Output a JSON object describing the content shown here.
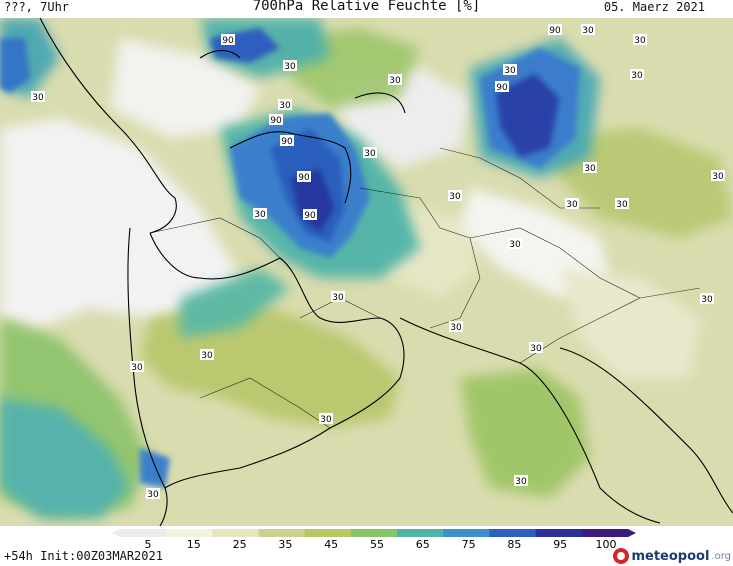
{
  "header": {
    "left": "???, 7Uhr",
    "title": "700hPa Relative Feuchte [%]",
    "date": "05. Maerz 2021"
  },
  "footer": {
    "run_info": "+54h Init:00Z03MAR2021",
    "brand": "meteopool",
    "brand_tld": ".org"
  },
  "legend": {
    "ticks": [
      "5",
      "15",
      "25",
      "35",
      "45",
      "55",
      "65",
      "75",
      "85",
      "95",
      "100"
    ],
    "colors": [
      "#ececec",
      "#f2f2e0",
      "#e6e6c0",
      "#cfd08e",
      "#b6c864",
      "#86c468",
      "#4fb3a8",
      "#3e8fce",
      "#2c5fbe",
      "#2a2f9a",
      "#3a1a7a"
    ]
  },
  "map": {
    "contour_labels": [
      {
        "text": "30",
        "lon": 0,
        "lat": 0
      },
      {
        "text": "90",
        "lon": 0,
        "lat": 0
      }
    ]
  }
}
